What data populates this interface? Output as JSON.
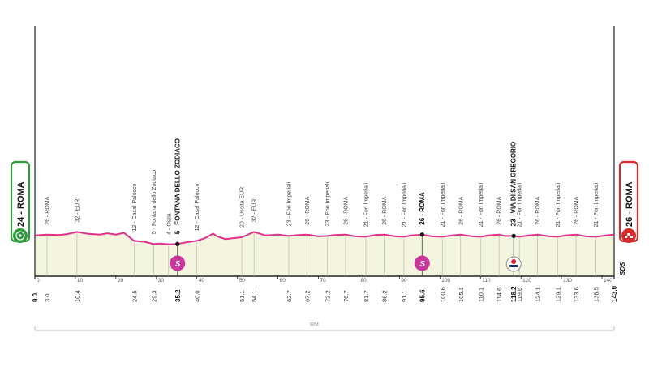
{
  "start": {
    "label": "24 - ROMA",
    "color": "#2e9c3a"
  },
  "finish": {
    "label": "26 - ROMA",
    "color": "#d62b2b"
  },
  "brand_logo": "SDS",
  "province": "RM",
  "colors": {
    "profile_line": "#e0308c",
    "profile_fill": "#f3f5df",
    "sprint": "#c8389b",
    "axis": "#222222"
  },
  "axis_ticks": [
    "0",
    "10",
    "20",
    "30",
    "40",
    "50",
    "60",
    "70",
    "80",
    "90",
    "100",
    "110",
    "120",
    "130",
    "140"
  ],
  "points": [
    {
      "km": 0.0,
      "km_label": "0.0",
      "label": "",
      "bold": true
    },
    {
      "km": 3.0,
      "km_label": "3.0",
      "label": "26 - ROMA"
    },
    {
      "km": 10.4,
      "km_label": "10.4",
      "label": "32 - EUR"
    },
    {
      "km": 24.5,
      "km_label": "24.5",
      "label": "12 - Casal Palocco"
    },
    {
      "km": 29.3,
      "km_label": "29.3",
      "label": "5 - Fontana dello Zodiaco"
    },
    {
      "km": 33.0,
      "km_label": "",
      "label": "4 - Ostia"
    },
    {
      "km": 35.2,
      "km_label": "35.2",
      "label": "5 - FONTANA DELLO ZODIACO",
      "bold": true,
      "sprint": true
    },
    {
      "km": 40.0,
      "km_label": "40.0",
      "label": "12 - Casal Palocco"
    },
    {
      "km": 51.1,
      "km_label": "51.1",
      "label": "20 - Uscita EUR"
    },
    {
      "km": 54.1,
      "km_label": "54.1",
      "label": "32 - EUR"
    },
    {
      "km": 62.7,
      "km_label": "62.7",
      "label": "23 - Fori Imperiali"
    },
    {
      "km": 67.2,
      "km_label": "67.2",
      "label": "26 - ROMA"
    },
    {
      "km": 72.2,
      "km_label": "72.2",
      "label": "23 - Fori Imperiali"
    },
    {
      "km": 76.7,
      "km_label": "76.7",
      "label": "26 - ROMA"
    },
    {
      "km": 81.7,
      "km_label": "81.7",
      "label": "21 - Fori Imperiali"
    },
    {
      "km": 86.2,
      "km_label": "86.2",
      "label": "26 - ROMA"
    },
    {
      "km": 91.1,
      "km_label": "91.1",
      "label": "21 - Fori Imperiali"
    },
    {
      "km": 95.6,
      "km_label": "95.6",
      "label": "26 - ROMA",
      "bold": true,
      "sprint": true
    },
    {
      "km": 100.6,
      "km_label": "100.6",
      "label": "21 - Fori Imperiali"
    },
    {
      "km": 105.1,
      "km_label": "105.1",
      "label": "26 - ROMA"
    },
    {
      "km": 110.1,
      "km_label": "110.1",
      "label": "21 - Fori Imperiali"
    },
    {
      "km": 114.6,
      "km_label": "114.6",
      "label": "26 - ROMA"
    },
    {
      "km": 118.2,
      "km_label": "118.2",
      "label": "23 - VIA DI SAN GREGORIO",
      "bold": true,
      "redbull": true
    },
    {
      "km": 119.6,
      "km_label": "119.6",
      "label": "21 - Fori Imperiali"
    },
    {
      "km": 124.1,
      "km_label": "124.1",
      "label": "26 - ROMA"
    },
    {
      "km": 129.1,
      "km_label": "129.1",
      "label": "21 - Fori Imperiali"
    },
    {
      "km": 133.6,
      "km_label": "133.6",
      "label": "26 - ROMA"
    },
    {
      "km": 138.5,
      "km_label": "138.5",
      "label": "21 - Fori Imperiali"
    },
    {
      "km": 143.0,
      "km_label": "143.0",
      "label": "",
      "bold": true
    }
  ],
  "profile": [
    [
      0,
      24
    ],
    [
      3,
      26
    ],
    [
      6,
      25
    ],
    [
      8,
      27
    ],
    [
      10.4,
      32
    ],
    [
      13,
      28
    ],
    [
      16,
      26
    ],
    [
      18,
      29
    ],
    [
      20,
      26
    ],
    [
      22,
      30
    ],
    [
      24.5,
      12
    ],
    [
      27,
      10
    ],
    [
      29.3,
      5
    ],
    [
      31,
      6
    ],
    [
      33,
      4
    ],
    [
      35.2,
      5
    ],
    [
      37.5,
      9
    ],
    [
      40,
      12
    ],
    [
      42,
      18
    ],
    [
      44,
      28
    ],
    [
      45,
      22
    ],
    [
      47,
      16
    ],
    [
      49,
      18
    ],
    [
      51.1,
      20
    ],
    [
      54.1,
      32
    ],
    [
      57,
      24
    ],
    [
      60,
      26
    ],
    [
      62.7,
      23
    ],
    [
      65,
      25
    ],
    [
      67.2,
      26
    ],
    [
      70,
      22
    ],
    [
      72.2,
      23
    ],
    [
      74,
      25
    ],
    [
      76.7,
      26
    ],
    [
      79,
      22
    ],
    [
      81.7,
      21
    ],
    [
      84,
      25
    ],
    [
      86.2,
      26
    ],
    [
      89,
      22
    ],
    [
      91.1,
      21
    ],
    [
      93,
      24
    ],
    [
      95.6,
      26
    ],
    [
      98,
      22
    ],
    [
      100.6,
      21
    ],
    [
      103,
      24
    ],
    [
      105.1,
      26
    ],
    [
      108,
      22
    ],
    [
      110.1,
      21
    ],
    [
      112,
      24
    ],
    [
      114.6,
      26
    ],
    [
      116,
      23
    ],
    [
      118.2,
      23
    ],
    [
      119.6,
      21
    ],
    [
      122,
      24
    ],
    [
      124.1,
      26
    ],
    [
      127,
      22
    ],
    [
      129.1,
      21
    ],
    [
      131,
      24
    ],
    [
      133.6,
      26
    ],
    [
      136,
      22
    ],
    [
      138.5,
      21
    ],
    [
      141,
      24
    ],
    [
      143,
      26
    ]
  ]
}
